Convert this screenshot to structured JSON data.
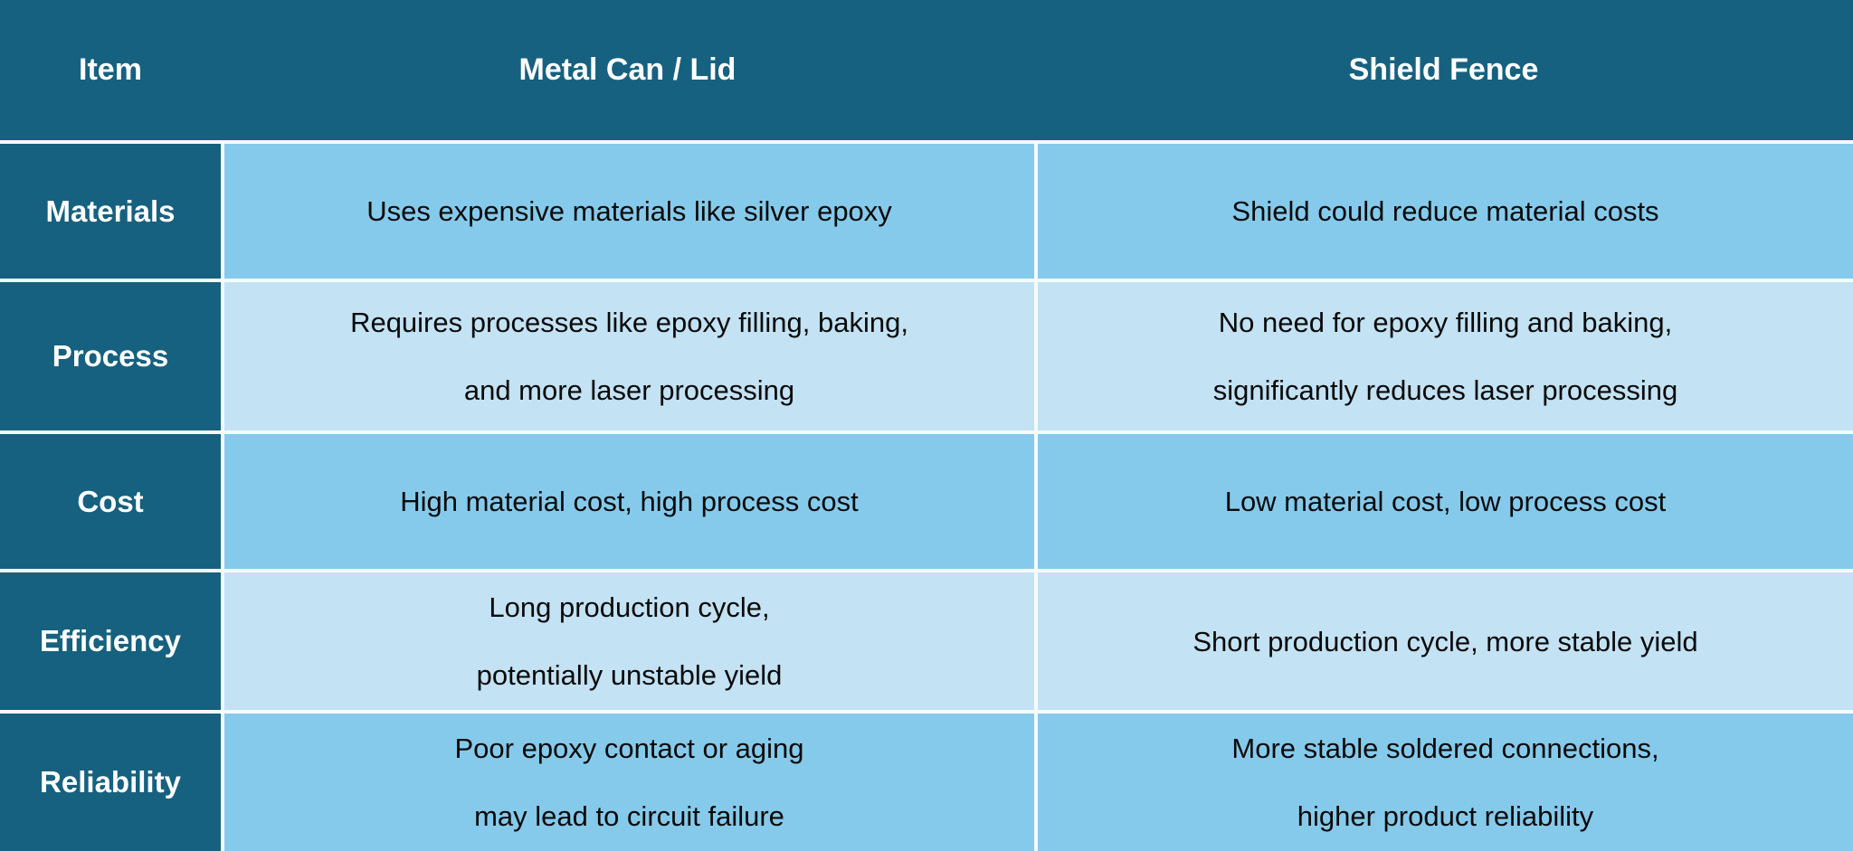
{
  "colors": {
    "header_bg": "#16617F",
    "label_bg": "#16617F",
    "cell_blue": "#85CAEB",
    "cell_light_blue": "#C3E2F3",
    "border": "#F5FAFD",
    "header_text": "#FFFFFF",
    "label_text": "#FFFFFF",
    "cell_text": "#0A0A0A"
  },
  "table": {
    "header": {
      "columns": [
        "Item",
        "Metal Can / Lid",
        "Shield Fence"
      ]
    },
    "rows": [
      {
        "label": "Materials",
        "metal": "Uses expensive materials like silver epoxy",
        "shield": "Shield could reduce material costs"
      },
      {
        "label": "Process",
        "metal": "Requires processes like epoxy filling, baking,\nand more laser processing",
        "shield": "No need for epoxy filling and baking,\nsignificantly reduces laser processing"
      },
      {
        "label": "Cost",
        "metal": "High material cost, high process cost",
        "shield": "Low material cost, low process cost"
      },
      {
        "label": "Efficiency",
        "metal": "Long production cycle,\npotentially unstable yield",
        "shield": "Short production cycle, more stable yield"
      },
      {
        "label": "Reliability",
        "metal": "Poor epoxy contact or aging\nmay lead to circuit failure",
        "shield": "More stable soldered connections,\nhigher product reliability"
      }
    ]
  }
}
